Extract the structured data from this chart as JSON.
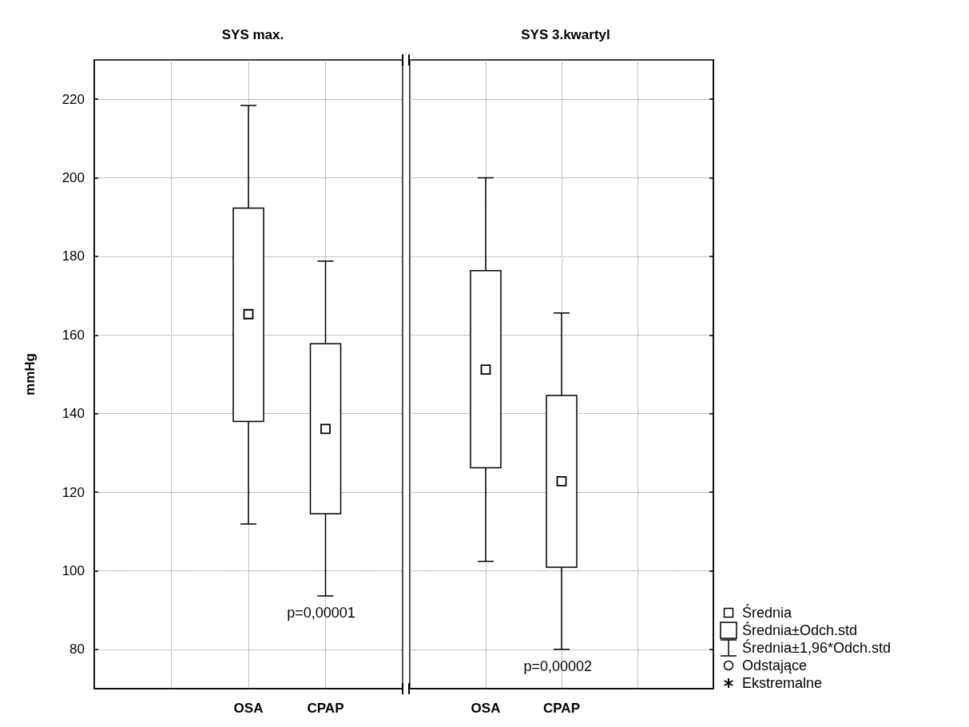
{
  "chart_data": [
    {
      "type": "box",
      "title": "SYS max.",
      "ylabel": "mmHg",
      "categories": [
        null,
        null,
        "OSA",
        "CPAP",
        null
      ],
      "boxes": [
        null,
        null,
        {
          "low": 111.9,
          "q1": 138.0,
          "mean": 165.3,
          "q3": 192.3,
          "high": 218.4
        },
        {
          "low": 93.6,
          "q1": 114.5,
          "mean": 136.1,
          "q3": 157.8,
          "high": 178.8
        },
        null
      ],
      "ylim": [
        70,
        230
      ],
      "yticks": [
        80,
        100,
        120,
        140,
        160,
        180,
        200,
        220
      ],
      "grid": true,
      "marker": "square",
      "annotations": [
        "p=0,00001"
      ]
    },
    {
      "type": "box",
      "title": "SYS 3.kwartyl",
      "categories": [
        null,
        "OSA",
        "CPAP",
        null,
        null
      ],
      "boxes": [
        null,
        {
          "low": 102.4,
          "q1": 126.2,
          "mean": 151.2,
          "q3": 176.4,
          "high": 200.0
        },
        {
          "low": 80.0,
          "q1": 100.9,
          "mean": 122.8,
          "q3": 144.6,
          "high": 165.6
        },
        null,
        null
      ],
      "ylim": [
        70,
        230
      ],
      "yticks": [
        80,
        100,
        120,
        140,
        160,
        180,
        200,
        220
      ],
      "grid": true,
      "marker": "square",
      "tick_labels": "x",
      "annotations": [
        "p=0,00002",
        "Średnia",
        "Średnia±Odch.std",
        "Średnia±1,96*Odch.std",
        "Odstające",
        "Ekstremalne"
      ]
    }
  ]
}
